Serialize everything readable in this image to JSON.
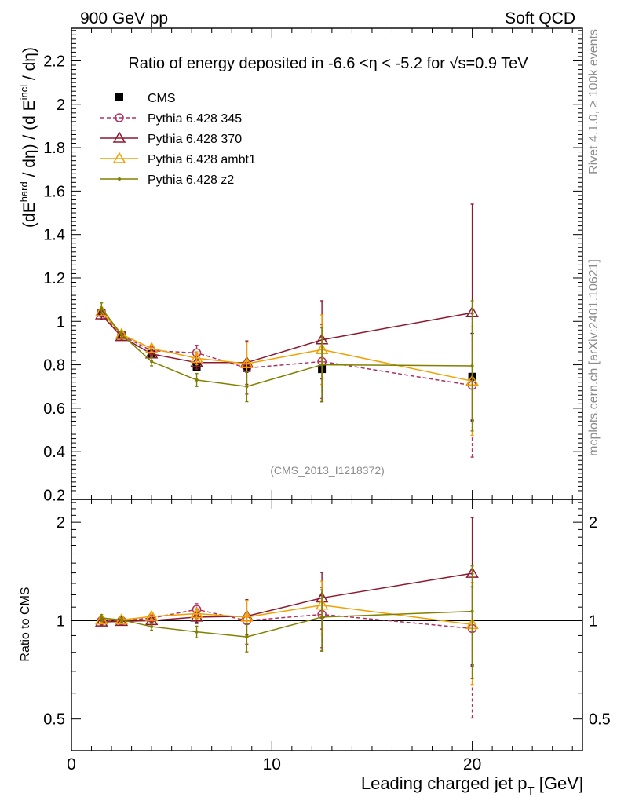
{
  "header": {
    "left": "900 GeV pp",
    "right": "Soft QCD"
  },
  "side_labels": {
    "rivet": "Rivet 4.1.0, ≥ 100k events",
    "mcplots": "mcplots.cern.ch [arXiv:2401.10621]"
  },
  "watermark": "(CMS_2013_I1218372)",
  "chart_data": {
    "type": "scatter",
    "title": "Ratio of energy deposited in -6.6 <η < -5.2 for √s=0.9 TeV",
    "xlabel": "Leading charged jet p_T [GeV]",
    "ylabel": "(dE^hard / dη) / (d E^incl / dη)",
    "ratio_ylabel": "Ratio to CMS",
    "xlim": [
      0,
      25.5
    ],
    "ylim": [
      0.18,
      2.35
    ],
    "ratio_ylim": [
      0.4,
      2.35
    ],
    "x_ticks": [
      0,
      10,
      20
    ],
    "y_ticks": [
      0.2,
      0.4,
      0.6,
      0.8,
      1,
      1.2,
      1.4,
      1.6,
      1.8,
      2,
      2.2
    ],
    "ratio_ticks": [
      0.5,
      1,
      2
    ],
    "x": [
      1.5,
      2.5,
      4,
      6.25,
      8.75,
      12.5,
      20
    ],
    "data": {
      "name": "CMS",
      "values": [
        1.04,
        0.935,
        0.85,
        0.79,
        0.785,
        0.78,
        0.745
      ],
      "errors": [
        0.015,
        0.01,
        0.01,
        0.015,
        0.02,
        0.15,
        0.2
      ]
    },
    "series": [
      {
        "name": "Pythia 6.428 345",
        "color": "#b03060",
        "marker": "circle",
        "dashed": true,
        "values": [
          1.04,
          0.935,
          0.865,
          0.855,
          0.785,
          0.815,
          0.705
        ],
        "errors": [
          0.02,
          0.01,
          0.02,
          0.035,
          0.12,
          0.17,
          0.33
        ]
      },
      {
        "name": "Pythia 6.428 370",
        "color": "#8b1a2e",
        "marker": "triangle",
        "dashed": false,
        "values": [
          1.03,
          0.93,
          0.85,
          0.81,
          0.81,
          0.915,
          1.04
        ],
        "errors": [
          0.02,
          0.01,
          0.015,
          0.03,
          0.1,
          0.18,
          0.5
        ]
      },
      {
        "name": "Pythia 6.428 ambt1",
        "color": "#f0a000",
        "marker": "triangle",
        "dashed": false,
        "values": [
          1.045,
          0.94,
          0.875,
          0.83,
          0.805,
          0.87,
          0.725
        ],
        "errors": [
          0.02,
          0.01,
          0.015,
          0.03,
          0.1,
          0.16,
          0.25
        ]
      },
      {
        "name": "Pythia 6.428 z2",
        "color": "#808000",
        "marker": "dot",
        "dashed": false,
        "values": [
          1.06,
          0.94,
          0.815,
          0.73,
          0.7,
          0.8,
          0.795
        ],
        "errors": [
          0.025,
          0.015,
          0.02,
          0.03,
          0.07,
          0.17,
          0.3
        ]
      }
    ]
  }
}
